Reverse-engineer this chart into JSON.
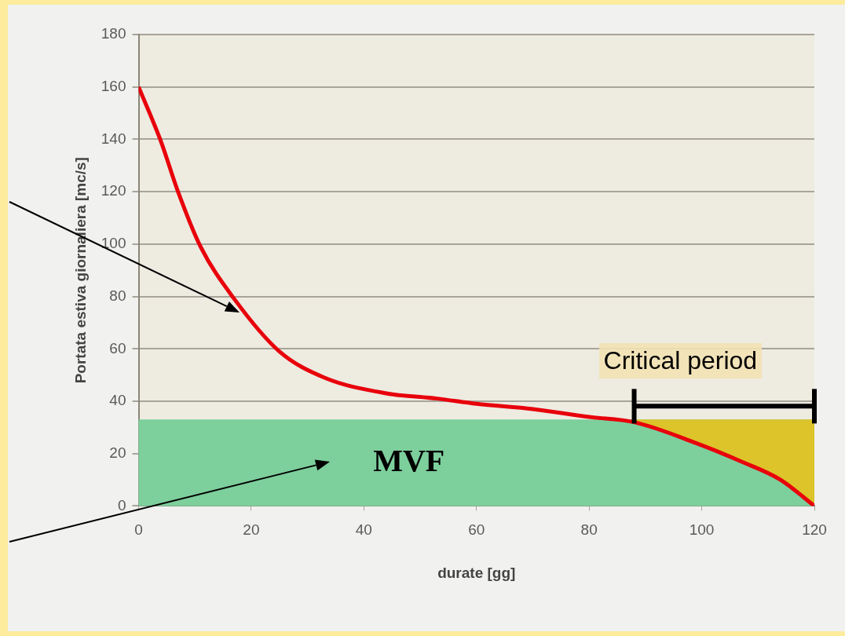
{
  "chart_data": {
    "type": "line",
    "xlabel": "durate [gg]",
    "ylabel": "Portata estiva giornaliera [mc/s]",
    "xlim": [
      0,
      120
    ],
    "xticks": [
      0,
      20,
      40,
      60,
      80,
      100,
      120
    ],
    "ylim": [
      0,
      180
    ],
    "yticks": [
      0,
      20,
      40,
      60,
      80,
      100,
      120,
      140,
      160,
      180
    ],
    "grid": "y",
    "marker": "none",
    "line_style": "solid",
    "series": [
      {
        "type": "line",
        "color": "#e8000b",
        "x": [
          0,
          4,
          7,
          11,
          17,
          25,
          33,
          44,
          53,
          60,
          70,
          80,
          88,
          99,
          107,
          114,
          120
        ],
        "values": [
          160,
          139,
          120,
          99,
          79,
          59,
          49,
          43,
          41,
          39,
          37,
          34,
          32,
          24,
          17,
          10,
          0
        ]
      }
    ],
    "bands": [
      {
        "axis": "y",
        "from": 0,
        "to": 33,
        "label": "MVF",
        "color": "#7dcf9c"
      },
      {
        "axis": "x",
        "from": 88,
        "to": 120,
        "label": "Critical period",
        "color": "#dcc42a"
      }
    ]
  }
}
